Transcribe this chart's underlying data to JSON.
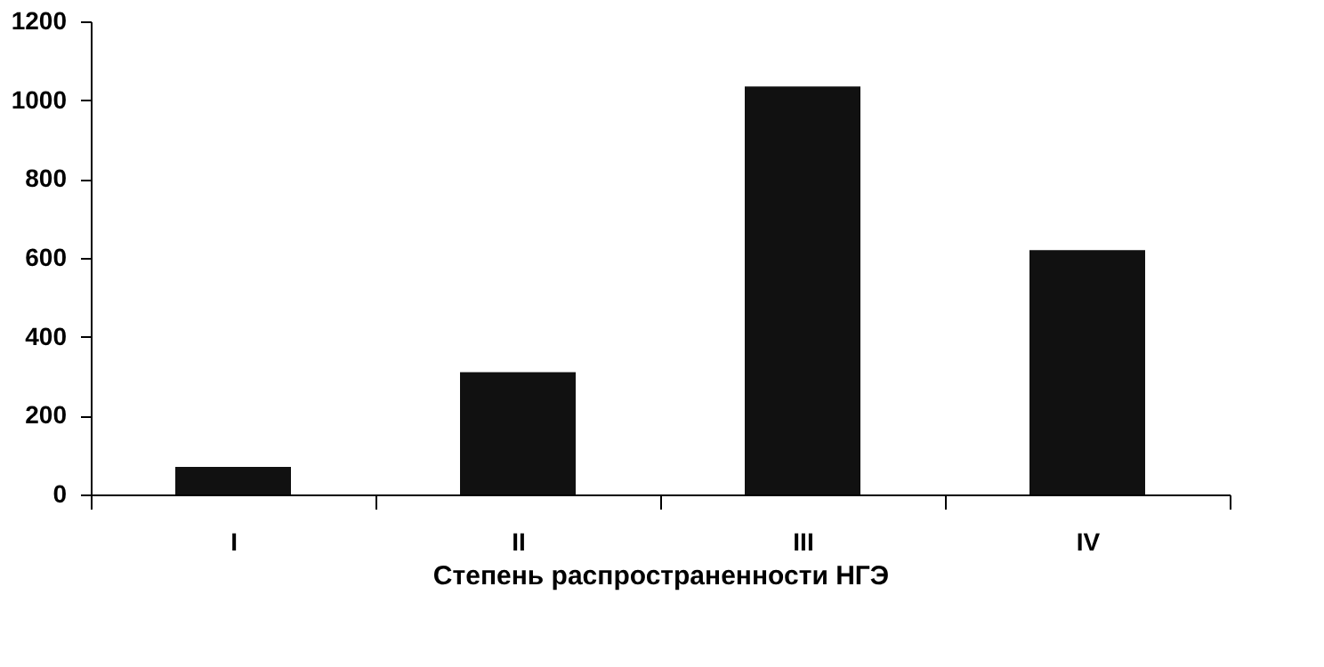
{
  "chart_data": {
    "type": "bar",
    "xlabel": "Степень распространенности НГЭ",
    "categories": [
      "I",
      "II",
      "III",
      "IV"
    ],
    "values": [
      70,
      310,
      1035,
      620
    ],
    "color": "#111111",
    "ylim": [
      0,
      1200
    ],
    "yticks": [
      0,
      200,
      400,
      600,
      800,
      1000,
      1200
    ],
    "grid": false
  }
}
